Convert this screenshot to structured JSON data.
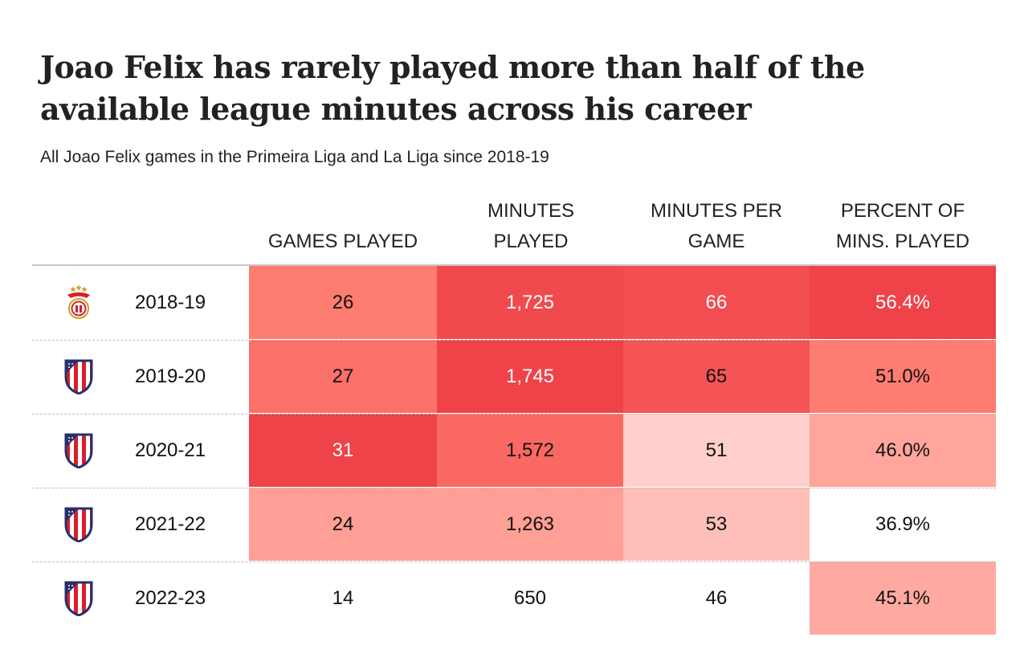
{
  "title": "Joao Felix has rarely played more than half of the available league minutes across his career",
  "subtitle": "All Joao Felix games in the Primeira Liga and La Liga since 2018-19",
  "colors": {
    "scale_low": "#ffffff",
    "scale_mid": "#ff7f72",
    "scale_high": "#ef4249",
    "text_dark": "#111111",
    "text_light": "#ffffff"
  },
  "chart_data": {
    "type": "table",
    "title": "Joao Felix has rarely played more than half of the available league minutes across his career",
    "subtitle": "All Joao Felix games in the Primeira Liga and La Liga since 2018-19",
    "columns": [
      "GAMES PLAYED",
      "MINUTES PLAYED",
      "MINUTES PER GAME",
      "PERCENT OF MINS. PLAYED"
    ],
    "rows": [
      {
        "season": "2018-19",
        "club_icon": "benfica-crest-icon",
        "games_played": "26",
        "minutes_played": "1,725",
        "minutes_per_game": "66",
        "percent_of_mins_played": "56.4%",
        "shade": [
          0.62,
          0.95,
          0.92,
          1.0
        ]
      },
      {
        "season": "2019-20",
        "club_icon": "atletico-madrid-crest-icon",
        "games_played": "27",
        "minutes_played": "1,745",
        "minutes_per_game": "65",
        "percent_of_mins_played": "51.0%",
        "shade": [
          0.7,
          1.0,
          0.88,
          0.62
        ]
      },
      {
        "season": "2020-21",
        "club_icon": "atletico-madrid-crest-icon",
        "games_played": "31",
        "minutes_played": "1,572",
        "minutes_per_game": "51",
        "percent_of_mins_played": "46.0%",
        "shade": [
          1.0,
          0.75,
          0.22,
          0.42
        ]
      },
      {
        "season": "2021-22",
        "club_icon": "atletico-madrid-crest-icon",
        "games_played": "24",
        "minutes_played": "1,263",
        "minutes_per_game": "53",
        "percent_of_mins_played": "36.9%",
        "shade": [
          0.45,
          0.45,
          0.3,
          0.0
        ]
      },
      {
        "season": "2022-23",
        "club_icon": "atletico-madrid-crest-icon",
        "games_played": "14",
        "minutes_played": "650",
        "minutes_per_game": "46",
        "percent_of_mins_played": "45.1%",
        "shade": [
          0.0,
          0.0,
          0.0,
          0.4
        ]
      }
    ]
  }
}
